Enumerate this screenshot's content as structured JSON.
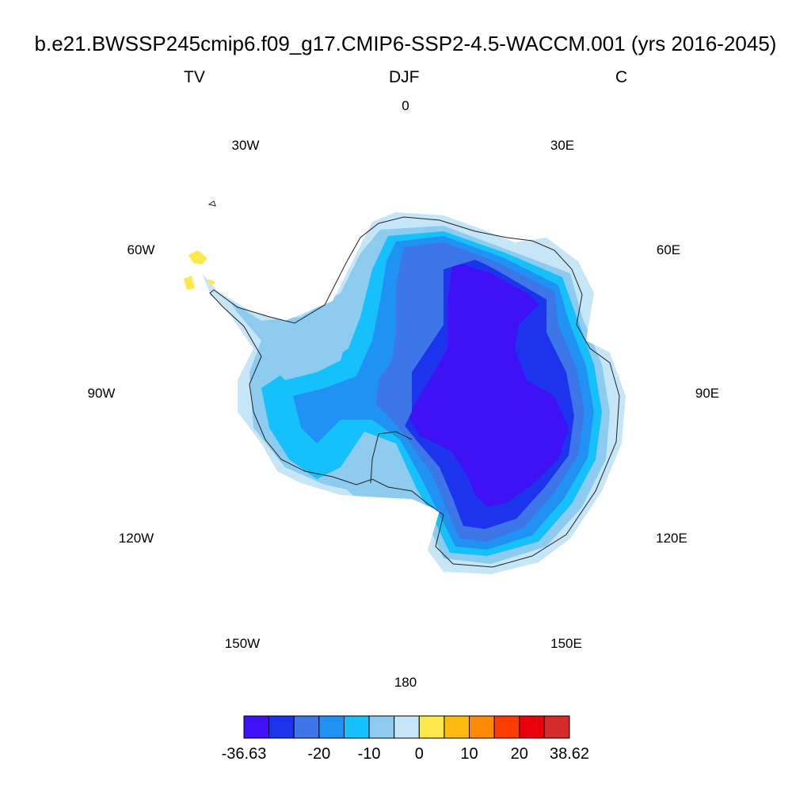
{
  "title": "b.e21.BWSSP245cmip6.f09_g17.CMIP6-SSP2-4.5-WACCM.001 (yrs 2016-2045)",
  "subtitle_left": "TV",
  "subtitle_center": "DJF",
  "subtitle_right": "C",
  "longitude_labels": {
    "lon_0": "0",
    "lon_30e": "30E",
    "lon_60e": "60E",
    "lon_90e": "90E",
    "lon_120e": "120E",
    "lon_150e": "150E",
    "lon_180": "180",
    "lon_150w": "150W",
    "lon_120w": "120W",
    "lon_90w": "90W",
    "lon_60w": "60W",
    "lon_30w": "30W"
  },
  "chart_data": {
    "type": "heatmap",
    "projection": "south-polar-stereographic",
    "variable": "TV",
    "season": "DJF",
    "units": "C",
    "colorbar": {
      "colors": [
        "#3f11f5",
        "#1c35ec",
        "#3c76e7",
        "#1f92f4",
        "#15c0fb",
        "#8dcbef",
        "#c6e6f7",
        "#fde94d",
        "#fdbb12",
        "#fd8a04",
        "#fd3c04",
        "#e8000b",
        "#d42c2c"
      ],
      "tick_labels": [
        "-36.63",
        "-20",
        "-10",
        "0",
        "10",
        "20",
        "38.62"
      ],
      "min": -36.63,
      "max": 38.62
    }
  }
}
